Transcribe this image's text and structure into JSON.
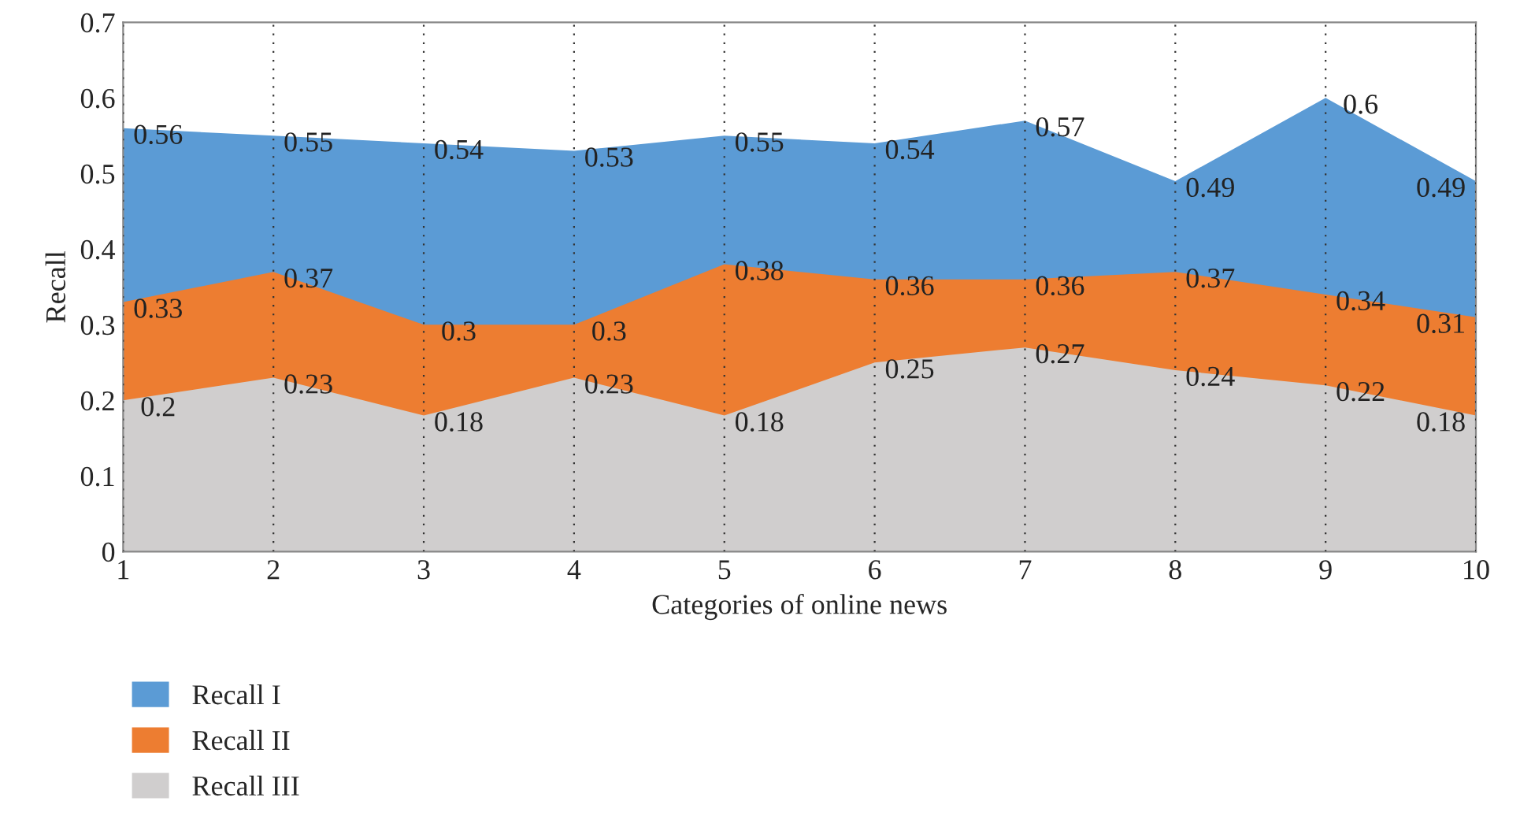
{
  "chart_data": {
    "type": "area",
    "xlabel": "Categories of online news",
    "ylabel": "Recall",
    "x": [
      1,
      2,
      3,
      4,
      5,
      6,
      7,
      8,
      9,
      10
    ],
    "series": [
      {
        "name": "Recall I",
        "color": "#5b9bd5",
        "values": [
          0.56,
          0.55,
          0.54,
          0.53,
          0.55,
          0.54,
          0.57,
          0.49,
          0.6,
          0.49
        ]
      },
      {
        "name": "Recall II",
        "color": "#ed7d31",
        "values": [
          0.33,
          0.37,
          0.3,
          0.3,
          0.38,
          0.36,
          0.36,
          0.37,
          0.34,
          0.31
        ]
      },
      {
        "name": "Recall III",
        "color": "#d0cece",
        "values": [
          0.2,
          0.23,
          0.18,
          0.23,
          0.18,
          0.25,
          0.27,
          0.24,
          0.22,
          0.18
        ]
      }
    ],
    "xlim": [
      1,
      10
    ],
    "xticks": [
      1,
      2,
      3,
      4,
      5,
      6,
      7,
      8,
      9,
      10
    ],
    "ylim": [
      0,
      0.7
    ],
    "yticks": [
      0,
      0.1,
      0.2,
      0.3,
      0.4,
      0.5,
      0.6,
      0.7
    ],
    "grid": "x",
    "legend": "bottom left",
    "data_labels": true
  }
}
